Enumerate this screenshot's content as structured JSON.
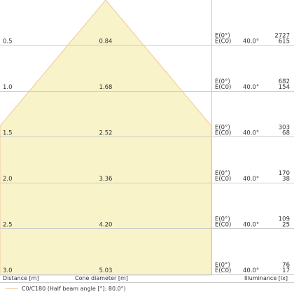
{
  "colors": {
    "cone_fill": "#f8f3c9",
    "cone_stroke": "#f3c89a",
    "grid": "#cccccc",
    "text": "#333333"
  },
  "chart_data": {
    "type": "table",
    "cone_half_angle_deg": 40.0,
    "distances": [
      "0.5",
      "1.0",
      "1.5",
      "2.0",
      "2.5",
      "3.0"
    ],
    "cone_diameters": [
      "0.84",
      "1.68",
      "2.52",
      "3.36",
      "4.20",
      "5.03"
    ],
    "rows": [
      {
        "distance": "0.5",
        "diameter": "0.84",
        "labels": [
          "E(0°)",
          "E(C0)"
        ],
        "angle": "40.0°",
        "e0": "2727",
        "ec0": "615"
      },
      {
        "distance": "1.0",
        "diameter": "1.68",
        "labels": [
          "E(0°)",
          "E(C0)"
        ],
        "angle": "40.0°",
        "e0": "682",
        "ec0": "154"
      },
      {
        "distance": "1.5",
        "diameter": "2.52",
        "labels": [
          "E(0°)",
          "E(C0)"
        ],
        "angle": "40.0°",
        "e0": "303",
        "ec0": "68"
      },
      {
        "distance": "2.0",
        "diameter": "3.36",
        "labels": [
          "E(0°)",
          "E(C0)"
        ],
        "angle": "40.0°",
        "e0": "170",
        "ec0": "38"
      },
      {
        "distance": "2.5",
        "diameter": "4.20",
        "labels": [
          "E(0°)",
          "E(C0)"
        ],
        "angle": "40.0°",
        "e0": "109",
        "ec0": "25"
      },
      {
        "distance": "3.0",
        "diameter": "5.03",
        "labels": [
          "E(0°)",
          "E(C0)"
        ],
        "angle": "40.0°",
        "e0": "76",
        "ec0": "17"
      }
    ],
    "xlabel_distance": "Distance [m]",
    "xlabel_diameter": "Cone diameter [m]",
    "xlabel_illuminance": "Illuminance [lx]",
    "legend": "C0/C180 (Half beam angle [°]: 80.0°)"
  }
}
